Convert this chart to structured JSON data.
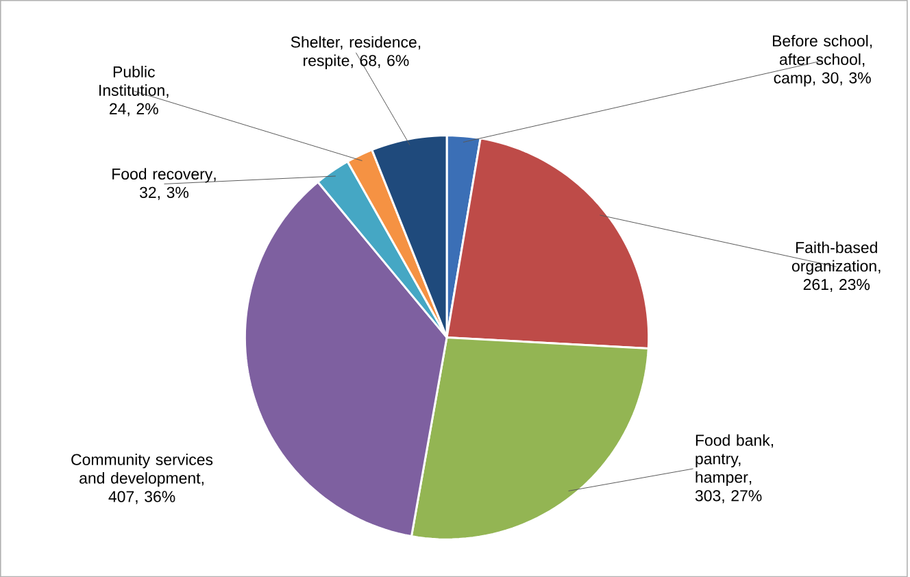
{
  "chart_data": {
    "type": "pie",
    "categories": [
      "Before school, after school, camp",
      "Faith-based organization",
      "Food bank, pantry, hamper",
      "Community services and development",
      "Food recovery",
      "Public Institution",
      "Shelter, residence, respite"
    ],
    "values": [
      30,
      261,
      303,
      407,
      32,
      24,
      68
    ],
    "value_labels": [
      ", 30, 3%",
      ", 261, 23%",
      ", 303, 27%",
      ", 407, 36%",
      ", 32, 3%",
      ", 24, 2%",
      ", 68, 6%"
    ],
    "colors": [
      "#3b6fb6",
      "#be4b48",
      "#93b553",
      "#7e60a0",
      "#45a7c4",
      "#f59243",
      "#1f4a7c"
    ]
  }
}
